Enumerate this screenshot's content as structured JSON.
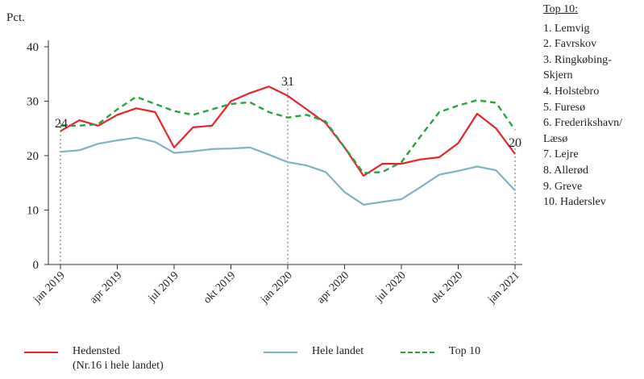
{
  "chart_data": {
    "type": "line",
    "ylabel": "Pct.",
    "ylim": [
      0,
      40
    ],
    "yticks": [
      0,
      10,
      20,
      30,
      40
    ],
    "x": [
      "jan 2019",
      "feb 2019",
      "mar 2019",
      "apr 2019",
      "maj 2019",
      "jun 2019",
      "jul 2019",
      "aug 2019",
      "sep 2019",
      "okt 2019",
      "nov 2019",
      "dec 2019",
      "jan 2020",
      "feb 2020",
      "mar 2020",
      "apr 2020",
      "maj 2020",
      "jun 2020",
      "jul 2020",
      "aug 2020",
      "sep 2020",
      "okt 2020",
      "nov 2020",
      "dec 2020",
      "jan 2021"
    ],
    "xtick_labels": [
      {
        "index": 0,
        "label": "jan 2019"
      },
      {
        "index": 3,
        "label": "apr 2019"
      },
      {
        "index": 6,
        "label": "jul 2019"
      },
      {
        "index": 9,
        "label": "okt 2019"
      },
      {
        "index": 12,
        "label": "jan 2020"
      },
      {
        "index": 15,
        "label": "apr 2020"
      },
      {
        "index": 18,
        "label": "jul 2020"
      },
      {
        "index": 21,
        "label": "okt 2020"
      },
      {
        "index": 24,
        "label": "jan 2021"
      }
    ],
    "series": [
      {
        "name": "Hedensted",
        "color": "#e8242b",
        "dash": "solid",
        "values": [
          24.5,
          26.5,
          25.5,
          27.5,
          28.7,
          28.0,
          21.5,
          25.2,
          25.5,
          30.0,
          31.5,
          32.7,
          31.0,
          28.5,
          26.0,
          21.5,
          16.3,
          18.5,
          18.5,
          19.3,
          19.7,
          22.3,
          27.7,
          25.0,
          20.3
        ]
      },
      {
        "name": "Hele landet",
        "color": "#7fb3c2",
        "dash": "solid",
        "values": [
          20.7,
          21.0,
          22.2,
          22.8,
          23.3,
          22.5,
          20.5,
          20.8,
          21.2,
          21.3,
          21.5,
          20.2,
          18.8,
          18.2,
          17.0,
          13.3,
          11.0,
          11.5,
          12.0,
          14.2,
          16.5,
          17.2,
          18.0,
          17.3,
          13.6
        ]
      },
      {
        "name": "Top 10",
        "color": "#29a23d",
        "dash": "dashed",
        "values": [
          25.5,
          25.5,
          25.8,
          28.5,
          30.8,
          29.5,
          28.2,
          27.5,
          28.5,
          29.5,
          29.8,
          28.0,
          27.0,
          27.5,
          26.3,
          21.5,
          16.8,
          17.0,
          18.8,
          23.5,
          28.0,
          29.2,
          30.2,
          29.7,
          24.7
        ]
      }
    ],
    "annotations": [
      {
        "index": 0,
        "label": "24",
        "value": 24
      },
      {
        "index": 12,
        "label": "31",
        "value": 31
      },
      {
        "index": 24,
        "label": "20",
        "value": 20
      }
    ],
    "legend": {
      "placement": "bottom",
      "items": [
        {
          "label": "Hedensted",
          "sub": "(Nr.16 i hele landet)",
          "color": "#e8242b",
          "dash": "solid"
        },
        {
          "label": "Hele landet",
          "sub": "",
          "color": "#7fb3c2",
          "dash": "solid"
        },
        {
          "label": "Top 10",
          "sub": "",
          "color": "#29a23d",
          "dash": "dashed"
        }
      ]
    }
  },
  "top10": {
    "title": "Top 10:",
    "items": [
      "1. Lemvig",
      "2. Favrskov",
      "3. Ringkøbing-\n   Skjern",
      "4. Holstebro",
      "5. Furesø",
      "6. Frederikshavn/\n   Læsø",
      "7. Lejre",
      "8. Allerød",
      "9. Greve",
      "10. Haderslev"
    ]
  }
}
